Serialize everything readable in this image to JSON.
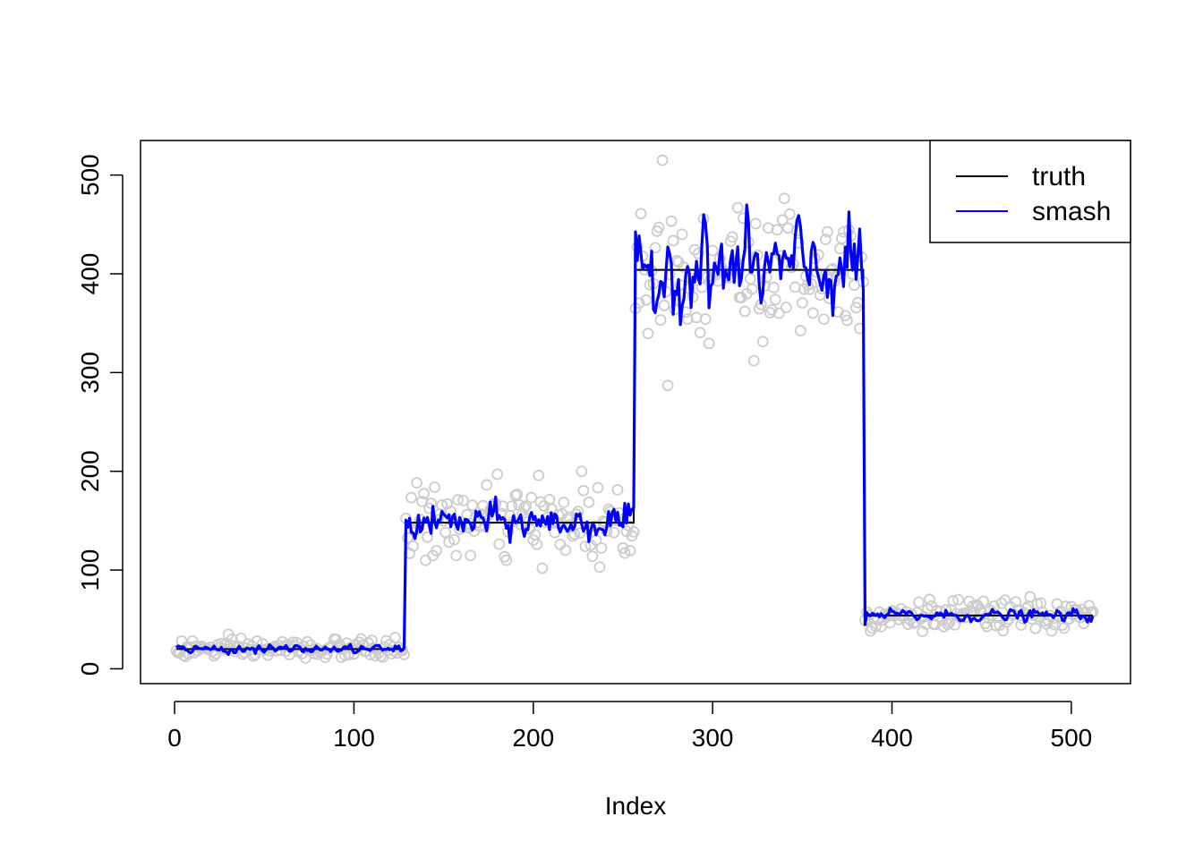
{
  "chart_data": {
    "type": "line",
    "title": "",
    "xlabel": "Index",
    "ylabel": "",
    "xlim": [
      -19,
      533
    ],
    "ylim": [
      -15,
      535
    ],
    "x_ticks": [
      0,
      100,
      200,
      300,
      400,
      500
    ],
    "y_ticks": [
      0,
      100,
      200,
      300,
      400,
      500
    ],
    "x_tick_labels": [
      "0",
      "100",
      "200",
      "300",
      "400",
      "500"
    ],
    "y_tick_labels": [
      "0",
      "100",
      "200",
      "300",
      "400",
      "500"
    ],
    "grid": false,
    "legend_position": "top-right",
    "legend": [
      {
        "label": "truth",
        "color": "#000000"
      },
      {
        "label": "smash",
        "color": "#0000ff"
      }
    ],
    "colors": {
      "truth": "#000000",
      "smash": "#0000ff",
      "observations": "#cccccc"
    },
    "n": 512,
    "segments": [
      {
        "x_start": 1,
        "x_end": 128,
        "truth": 20,
        "observed_sd": 5,
        "smash_sd": 2
      },
      {
        "x_start": 129,
        "x_end": 256,
        "truth": 148,
        "observed_sd": 18,
        "smash_sd": 9
      },
      {
        "x_start": 257,
        "x_end": 384,
        "truth": 404,
        "observed_sd": 36,
        "smash_sd": 22
      },
      {
        "x_start": 385,
        "x_end": 512,
        "truth": 54,
        "observed_sd": 8,
        "smash_sd": 3
      }
    ],
    "series": [
      {
        "name": "truth",
        "type": "step-line"
      },
      {
        "name": "smash",
        "type": "line"
      },
      {
        "name": "",
        "type": "scatter-open-circle"
      }
    ],
    "highlight_points": [
      {
        "x": 272,
        "y": 515
      },
      {
        "x": 323,
        "y": 312
      },
      {
        "x": 237,
        "y": 103
      },
      {
        "x": 180,
        "y": 197
      },
      {
        "x": 227,
        "y": 200
      }
    ]
  }
}
